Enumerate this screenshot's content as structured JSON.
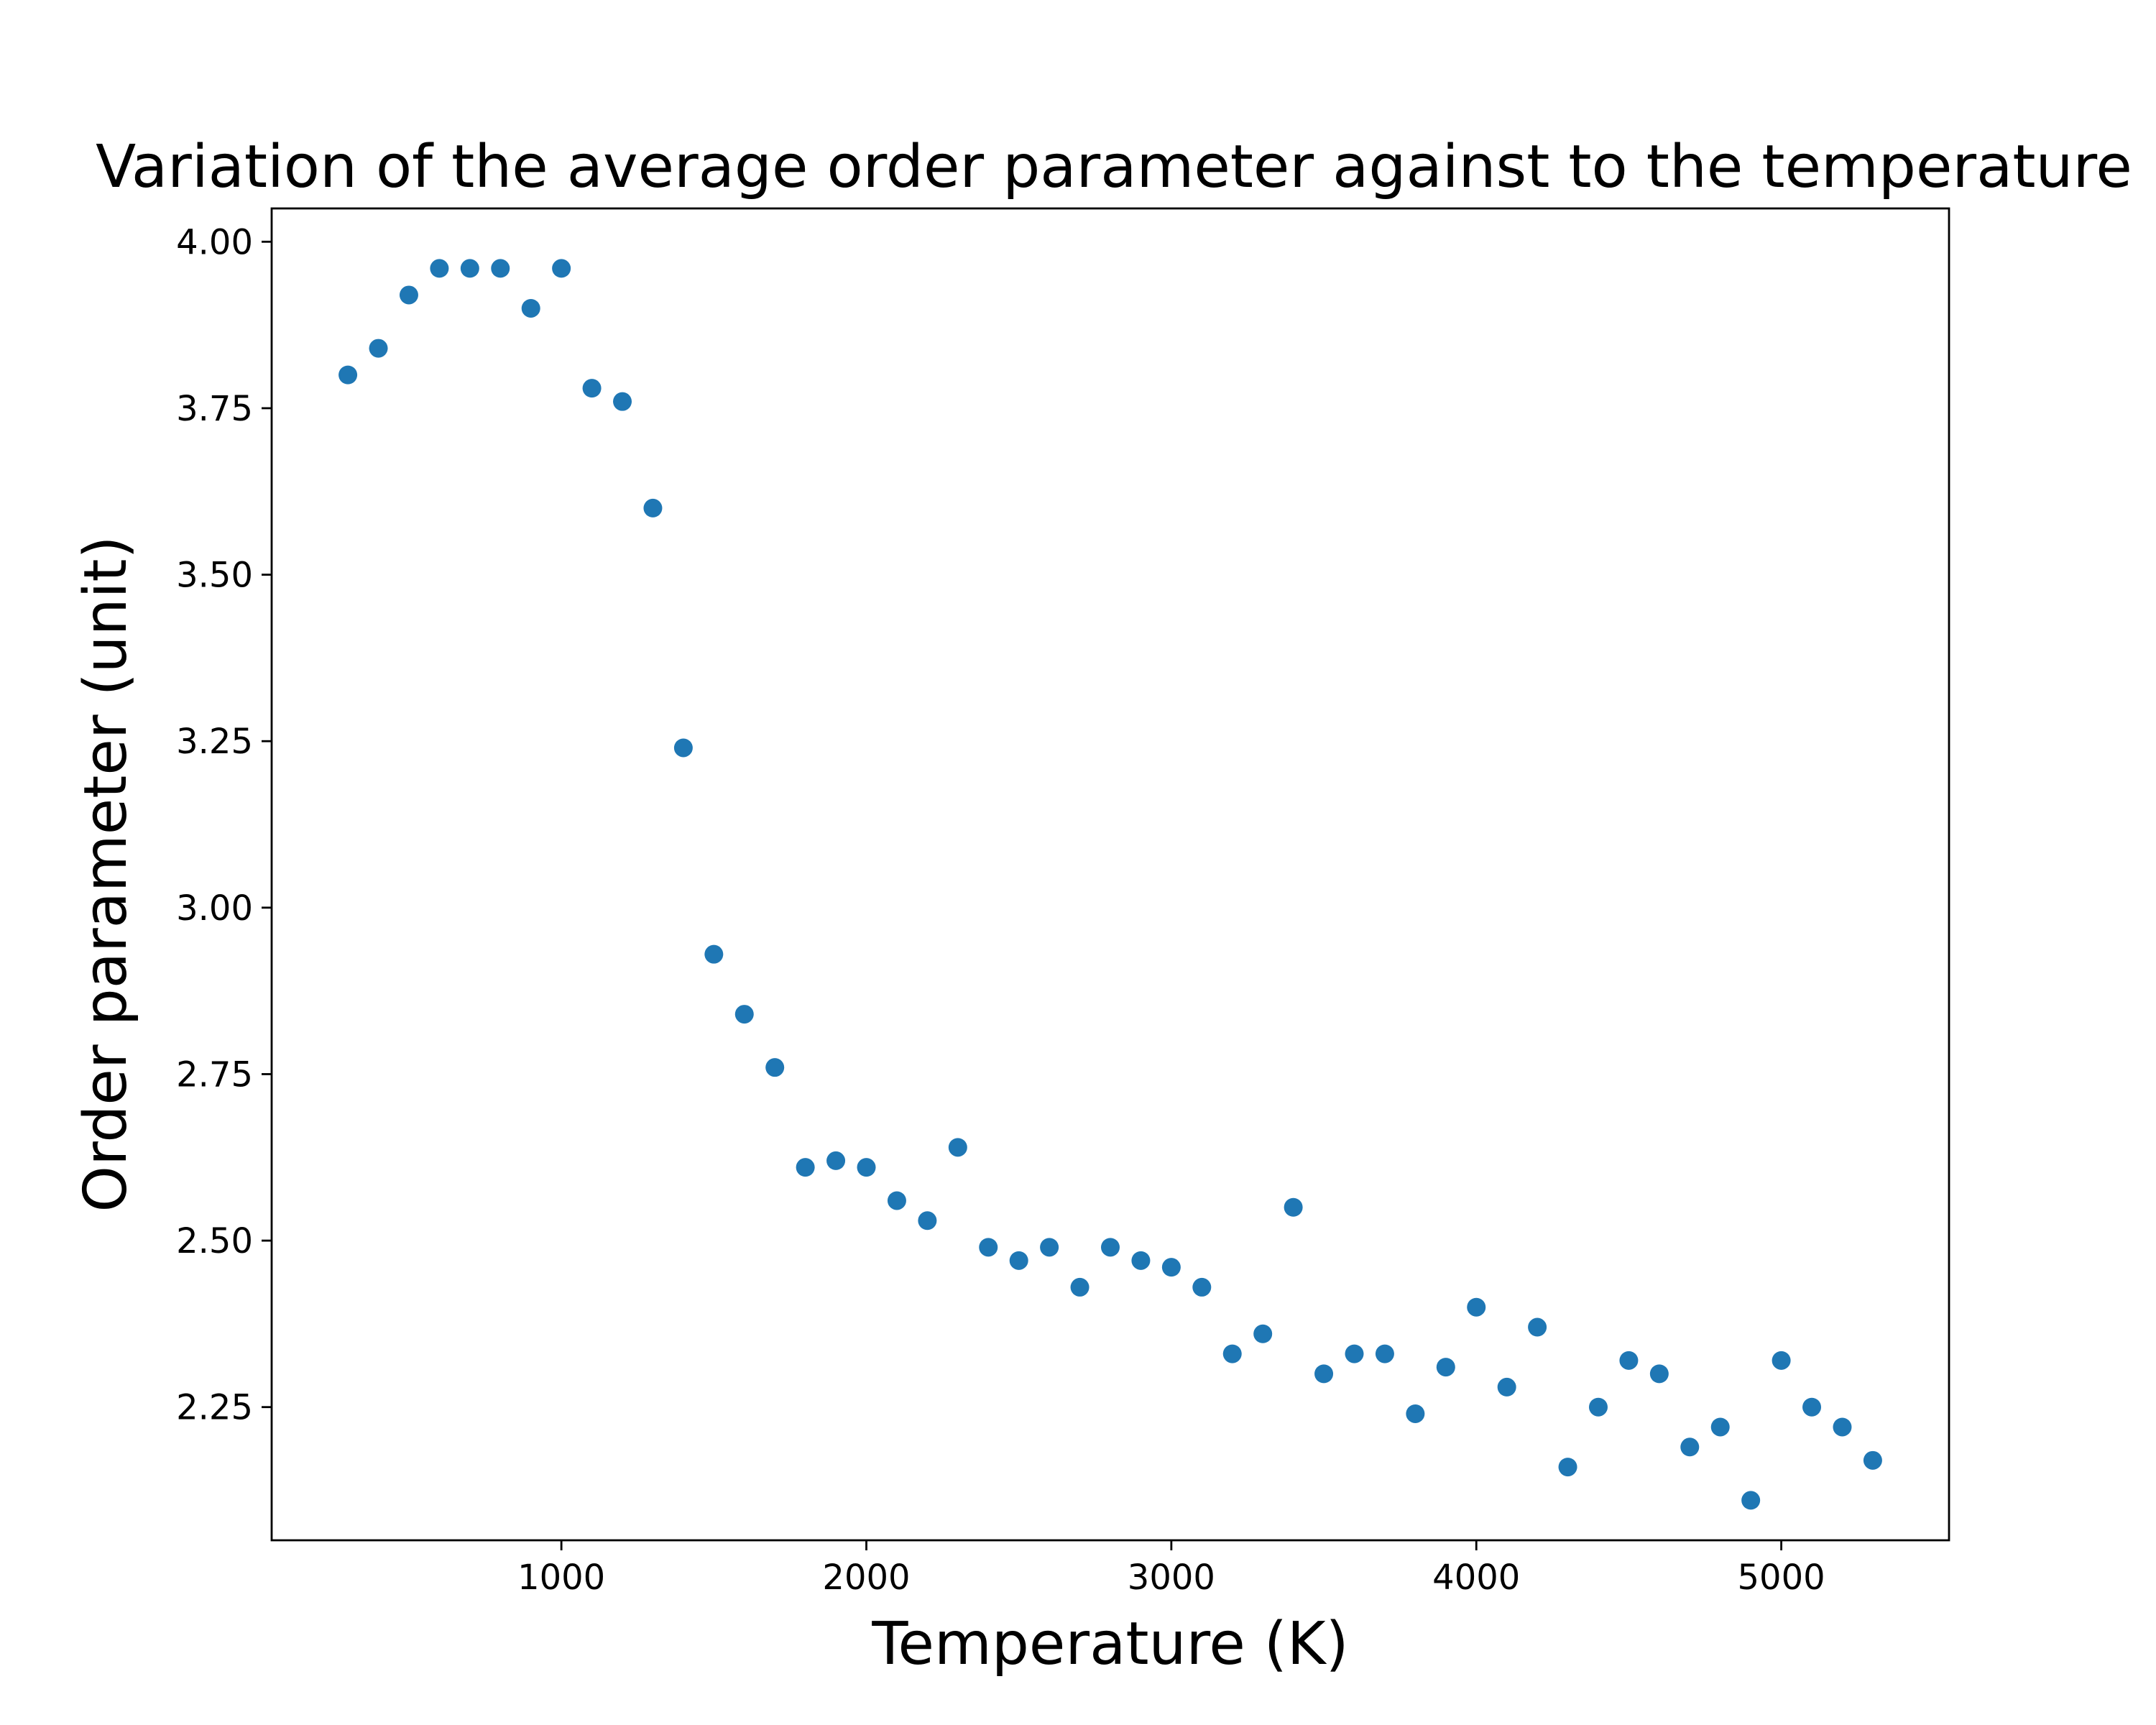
{
  "chart_data": {
    "type": "scatter",
    "title": "Variation of the average order parameter against to the temperature",
    "xlabel": "Temperature (K)",
    "ylabel": "Order parameter (unit)",
    "xlim": [
      50,
      5550
    ],
    "ylim": [
      2.05,
      4.05
    ],
    "xticks": [
      1000,
      2000,
      3000,
      4000,
      5000
    ],
    "yticks": [
      2.25,
      2.5,
      2.75,
      3.0,
      3.25,
      3.5,
      3.75,
      4.0
    ],
    "ytick_labels": [
      "2.25",
      "2.50",
      "2.75",
      "3.00",
      "3.25",
      "3.50",
      "3.75",
      "4.00"
    ],
    "grid": false,
    "legend": false,
    "marker_color": "#1f77b4",
    "series": [
      {
        "x": [
          300,
          400,
          500,
          600,
          700,
          800,
          900,
          1000,
          1100,
          1200,
          1300,
          1400,
          1500,
          1600,
          1700,
          1800,
          1900,
          2000,
          2100,
          2200,
          2300,
          2400,
          2500,
          2600,
          2700,
          2800,
          2900,
          3000,
          3100,
          3200,
          3300,
          3400,
          3500,
          3600,
          3700,
          3800,
          3900,
          4000,
          4100,
          4200,
          4300,
          4400,
          4500,
          4600,
          4700,
          4800,
          4900,
          5000,
          5100,
          5200,
          5300
        ],
        "y": [
          3.8,
          3.84,
          3.92,
          3.96,
          3.96,
          3.96,
          3.9,
          3.96,
          3.78,
          3.76,
          3.6,
          3.24,
          2.93,
          2.84,
          2.76,
          2.61,
          2.62,
          2.61,
          2.56,
          2.53,
          2.64,
          2.49,
          2.47,
          2.49,
          2.43,
          2.49,
          2.47,
          2.46,
          2.43,
          2.33,
          2.36,
          2.55,
          2.3,
          2.33,
          2.33,
          2.24,
          2.31,
          2.4,
          2.28,
          2.37,
          2.16,
          2.25,
          2.32,
          2.3,
          2.19,
          2.22,
          2.11,
          2.32,
          2.25,
          2.22,
          2.17
        ]
      }
    ]
  }
}
